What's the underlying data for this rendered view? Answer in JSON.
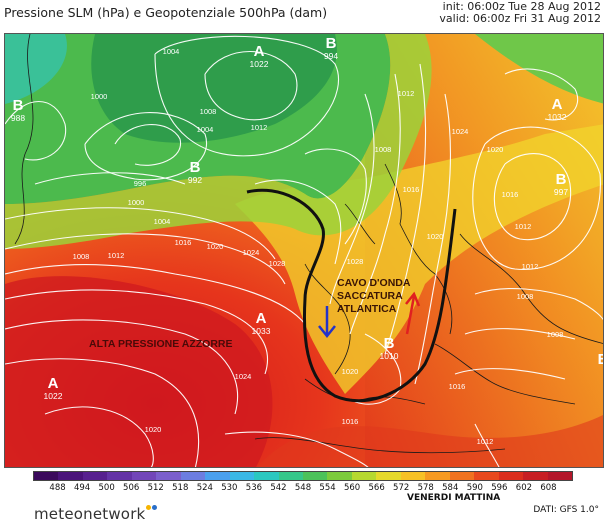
{
  "header": {
    "title": "Pressione SLM (hPa) e Geopotenziale 500hPa (dam)",
    "init": "init: 06:00z Tue 28 Aug 2012",
    "valid": "valid: 06:00z Fri 31 Aug 2012"
  },
  "map": {
    "pressure_centers": [
      {
        "letter": "A",
        "value": "1022",
        "color": "#ffffff"
      },
      {
        "letter": "B",
        "value": "994",
        "color": "#ffffff"
      },
      {
        "letter": "B",
        "value": "988",
        "color": "#ffffff"
      },
      {
        "letter": "B",
        "value": "992",
        "color": "#ffffff"
      },
      {
        "letter": "A",
        "value": "1033",
        "color": "#ffffff"
      },
      {
        "letter": "A",
        "value": "1022",
        "color": "#ffffff"
      },
      {
        "letter": "B",
        "value": "997",
        "color": "#ffffff"
      },
      {
        "letter": "A",
        "value": "1032",
        "color": "#ffffff"
      },
      {
        "letter": "B",
        "value": "1010",
        "color": "#ffffff"
      },
      {
        "letter": "B",
        "value": "",
        "color": "#ffffff"
      }
    ],
    "isobar_labels": [
      "1004",
      "1000",
      "1004",
      "1008",
      "1012",
      "996",
      "1000",
      "1004",
      "1008",
      "1012",
      "1016",
      "1020",
      "1024",
      "1028",
      "1024",
      "1020",
      "1016",
      "1012",
      "1008",
      "1008",
      "1012",
      "1016",
      "1020",
      "1024",
      "1028",
      "1008",
      "1012",
      "1016",
      "1020",
      "1016",
      "1012",
      "1020"
    ],
    "annotations": {
      "trough": "CAVO D'ONDA\nSACCATURA\nATLANTICA",
      "azores": "ALTA PRESSIONE AZZORRE"
    }
  },
  "legend": {
    "ticks": [
      "488",
      "494",
      "500",
      "506",
      "512",
      "518",
      "524",
      "530",
      "536",
      "542",
      "548",
      "554",
      "560",
      "566",
      "572",
      "578",
      "584",
      "590",
      "596",
      "602",
      "608"
    ],
    "colors": [
      "#3b0a5c",
      "#4a137a",
      "#57208f",
      "#6433a6",
      "#7246b9",
      "#7b5fcc",
      "#6c7de0",
      "#4aa0ee",
      "#3ab8e6",
      "#2bc8c0",
      "#36c78a",
      "#4cc25a",
      "#7ccb3c",
      "#b6d830",
      "#e6d92b",
      "#f7c126",
      "#f69a22",
      "#f07220",
      "#e8491e",
      "#db2e1e",
      "#c71e24",
      "#b3162a"
    ]
  },
  "footer": {
    "logo": "meteonetwork",
    "day": "VENERDI MATTINA",
    "source": "DATI: GFS 1.0°",
    "dot_colors": [
      "#f6b400",
      "#2a6fc9"
    ]
  }
}
